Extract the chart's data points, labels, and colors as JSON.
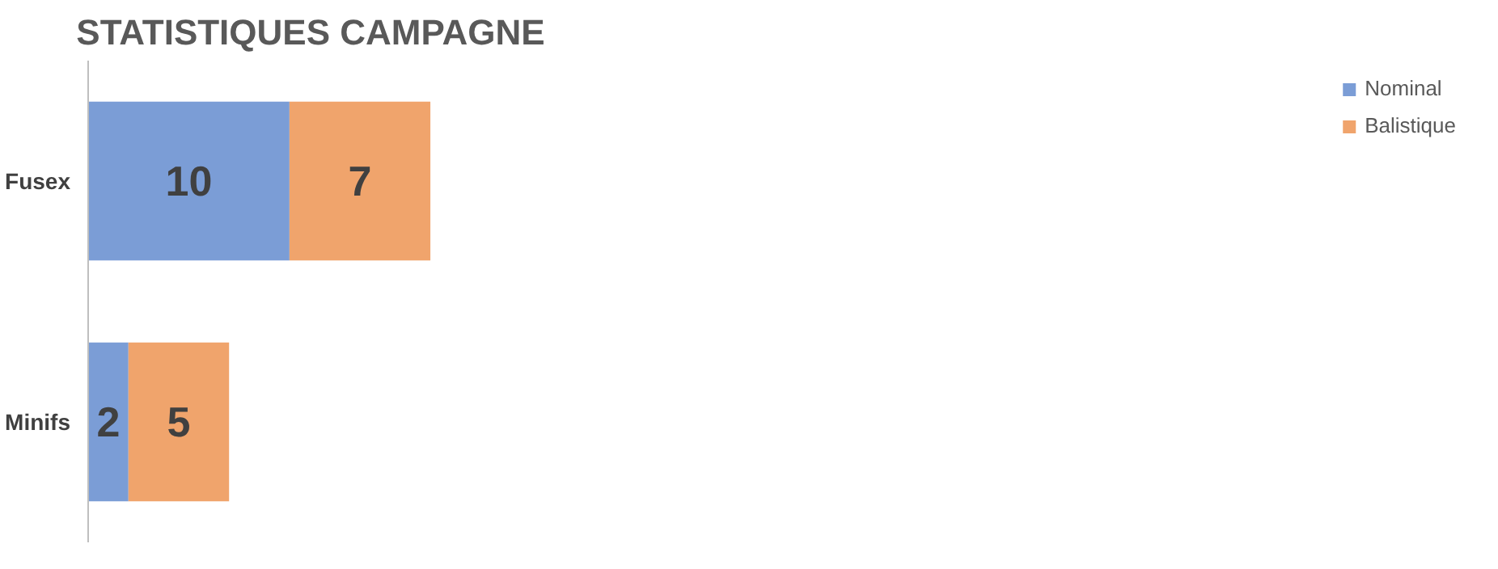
{
  "chart_data": {
    "type": "bar",
    "title": "STATISTIQUES CAMPAGNE",
    "orientation": "horizontal",
    "stacked": true,
    "data_labels": true,
    "legend": "right",
    "grid": false,
    "categories": [
      "Fusex",
      "Minifs"
    ],
    "series": [
      {
        "name": "Nominal",
        "color": "#7b9dd6",
        "values": [
          10,
          2
        ]
      },
      {
        "name": "Balistique",
        "color": "#f0a46c",
        "values": [
          7,
          5
        ]
      }
    ]
  }
}
